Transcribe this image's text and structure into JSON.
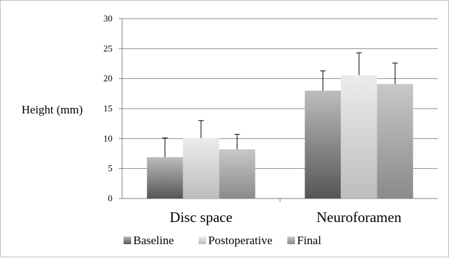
{
  "chart_data": {
    "type": "bar",
    "title": "",
    "xlabel": "",
    "ylabel": "Height (mm)",
    "ylim": [
      0,
      30
    ],
    "yticks": [
      0,
      5,
      10,
      15,
      20,
      25,
      30
    ],
    "grid": true,
    "legend_position": "bottom",
    "categories": [
      "Disc space",
      "Neuroforamen"
    ],
    "series": [
      {
        "name": "Baseline",
        "values": [
          6.9,
          18.0
        ],
        "error": [
          3.2,
          3.3
        ],
        "color_top": "#bdbdbd",
        "color_bottom": "#555555"
      },
      {
        "name": "Postoperative",
        "values": [
          10.1,
          20.6
        ],
        "error": [
          2.9,
          3.7
        ],
        "color_top": "#ececec",
        "color_bottom": "#bdbdbd"
      },
      {
        "name": "Final",
        "values": [
          8.2,
          19.1
        ],
        "error": [
          2.5,
          3.5
        ],
        "color_top": "#c8c8c8",
        "color_bottom": "#8a8a8a"
      }
    ]
  }
}
